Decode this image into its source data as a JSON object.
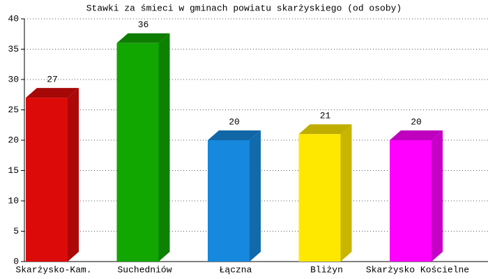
{
  "chart_data": {
    "type": "bar3d",
    "title": "Stawki za śmieci w gminach powiatu skarżyskiego (od osoby)",
    "categories": [
      "Skarżysko-Kam.",
      "Suchedniów",
      "Łączna",
      "Bliżyn",
      "Skarżysko Kościelne"
    ],
    "values": [
      27,
      36,
      20,
      21,
      20
    ],
    "colors": [
      "#dd0a0a",
      "#11a600",
      "#1688dd",
      "#ffe800",
      "#ff00ff"
    ],
    "ylim": [
      0,
      40
    ],
    "yticks": [
      0,
      5,
      10,
      15,
      20,
      25,
      30,
      35,
      40
    ],
    "grid": true
  }
}
